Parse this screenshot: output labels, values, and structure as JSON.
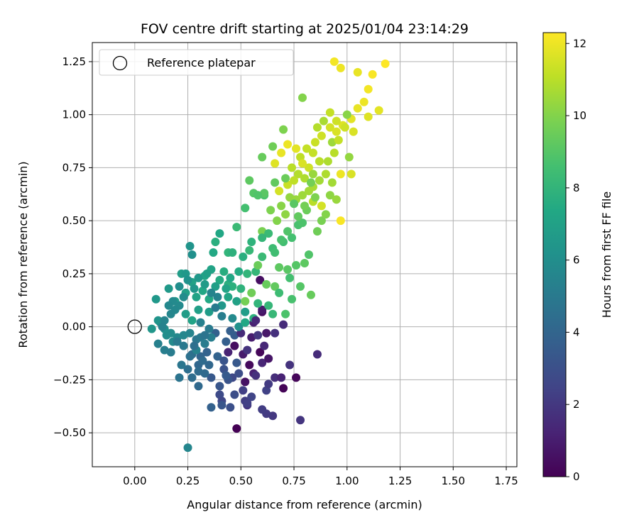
{
  "chart_data": {
    "type": "scatter",
    "title": "FOV centre drift starting at 2025/01/04 23:14:29",
    "xlabel": "Angular distance from reference (arcmin)",
    "ylabel": "Rotation from reference (arcmin)",
    "xlim": [
      -0.2,
      1.8
    ],
    "ylim": [
      -0.66,
      1.34
    ],
    "x_ticks": [
      0.0,
      0.25,
      0.5,
      0.75,
      1.0,
      1.25,
      1.5,
      1.75
    ],
    "x_tick_labels": [
      "0.00",
      "0.25",
      "0.50",
      "0.75",
      "1.00",
      "1.25",
      "1.50",
      "1.75"
    ],
    "y_ticks": [
      -0.5,
      -0.25,
      0.0,
      0.25,
      0.5,
      0.75,
      1.0,
      1.25
    ],
    "y_tick_labels": [
      "−0.50",
      "−0.25",
      "0.00",
      "0.25",
      "0.50",
      "0.75",
      "1.00",
      "1.25"
    ],
    "grid": true,
    "legend": {
      "placement": "top-left",
      "entries": [
        "Reference platepar"
      ]
    },
    "reference_point": {
      "x": 0.0,
      "y": 0.0
    },
    "colorbar": {
      "label": "Hours from first FF file",
      "colormap": "viridis",
      "range": [
        0,
        12.3
      ],
      "ticks": [
        0,
        2,
        4,
        6,
        8,
        10,
        12
      ],
      "tick_labels": [
        "0",
        "2",
        "4",
        "6",
        "8",
        "10",
        "12"
      ]
    },
    "points": [
      [
        0.48,
        -0.48,
        0.0
      ],
      [
        0.7,
        -0.29,
        0.1
      ],
      [
        0.76,
        -0.24,
        0.2
      ],
      [
        0.54,
        -0.18,
        0.3
      ],
      [
        0.59,
        -0.12,
        0.2
      ],
      [
        0.47,
        -0.09,
        0.4
      ],
      [
        0.6,
        0.07,
        0.5
      ],
      [
        0.59,
        0.22,
        0.5
      ],
      [
        0.7,
        0.01,
        1.5
      ],
      [
        0.62,
        -0.03,
        0.8
      ],
      [
        0.55,
        -0.05,
        1.0
      ],
      [
        0.51,
        -0.13,
        0.9
      ],
      [
        0.44,
        -0.12,
        1.2
      ],
      [
        0.52,
        -0.26,
        0.6
      ],
      [
        0.56,
        -0.22,
        1.1
      ],
      [
        0.6,
        -0.17,
        1.3
      ],
      [
        0.66,
        -0.24,
        1.6
      ],
      [
        0.73,
        -0.18,
        1.8
      ],
      [
        0.61,
        -0.09,
        1.4
      ],
      [
        0.66,
        -0.03,
        1.7
      ],
      [
        0.86,
        -0.13,
        1.5
      ],
      [
        0.78,
        -0.44,
        1.9
      ],
      [
        0.65,
        -0.42,
        2.0
      ],
      [
        0.62,
        -0.41,
        2.1
      ],
      [
        0.53,
        -0.37,
        1.9
      ],
      [
        0.52,
        -0.35,
        2.2
      ],
      [
        0.51,
        -0.3,
        2.3
      ],
      [
        0.55,
        -0.33,
        2.5
      ],
      [
        0.62,
        -0.3,
        2.4
      ],
      [
        0.63,
        -0.27,
        2.1
      ],
      [
        0.6,
        -0.39,
        2.2
      ],
      [
        0.45,
        -0.38,
        3.0
      ],
      [
        0.4,
        -0.32,
        2.8
      ],
      [
        0.41,
        -0.35,
        2.6
      ],
      [
        0.46,
        -0.24,
        2.7
      ],
      [
        0.49,
        -0.22,
        2.9
      ],
      [
        0.42,
        -0.2,
        3.1
      ],
      [
        0.44,
        -0.25,
        3.2
      ],
      [
        0.4,
        -0.28,
        3.3
      ],
      [
        0.36,
        -0.24,
        3.4
      ],
      [
        0.43,
        -0.23,
        3.5
      ],
      [
        0.47,
        -0.04,
        3.6
      ],
      [
        0.45,
        -0.02,
        3.7
      ],
      [
        0.38,
        -0.03,
        3.8
      ],
      [
        0.34,
        -0.12,
        3.9
      ],
      [
        0.31,
        -0.14,
        4.0
      ],
      [
        0.3,
        -0.18,
        4.1
      ],
      [
        0.33,
        -0.22,
        4.2
      ],
      [
        0.3,
        -0.21,
        4.3
      ],
      [
        0.27,
        -0.13,
        4.4
      ],
      [
        0.25,
        -0.2,
        4.5
      ],
      [
        0.26,
        -0.14,
        4.6
      ],
      [
        0.21,
        -0.24,
        4.7
      ],
      [
        0.29,
        -0.06,
        4.8
      ],
      [
        0.31,
        -0.05,
        4.9
      ],
      [
        0.35,
        -0.01,
        5.0
      ],
      [
        0.33,
        -0.08,
        5.1
      ],
      [
        0.36,
        -0.05,
        5.2
      ],
      [
        0.31,
        0.02,
        5.3
      ],
      [
        0.29,
        -0.11,
        5.4
      ],
      [
        0.26,
        -0.03,
        5.5
      ],
      [
        0.23,
        -0.04,
        5.6
      ],
      [
        0.2,
        -0.05,
        5.7
      ],
      [
        0.18,
        -0.07,
        5.8
      ],
      [
        0.17,
        -0.03,
        5.9
      ],
      [
        0.15,
        -0.04,
        6.0
      ],
      [
        0.14,
        -0.01,
        6.1
      ],
      [
        0.12,
        0.02,
        6.2
      ],
      [
        0.11,
        0.03,
        6.3
      ],
      [
        0.08,
        -0.01,
        6.4
      ],
      [
        0.1,
        0.13,
        6.5
      ],
      [
        0.16,
        0.18,
        6.6
      ],
      [
        0.19,
        0.12,
        6.7
      ],
      [
        0.22,
        0.25,
        6.8
      ],
      [
        0.24,
        0.16,
        6.9
      ],
      [
        0.27,
        0.21,
        7.0
      ],
      [
        0.29,
        0.14,
        7.1
      ],
      [
        0.33,
        0.24,
        7.2
      ],
      [
        0.32,
        0.17,
        7.3
      ],
      [
        0.35,
        0.13,
        7.4
      ],
      [
        0.4,
        0.22,
        7.5
      ],
      [
        0.42,
        0.26,
        7.6
      ],
      [
        0.44,
        0.2,
        7.7
      ],
      [
        0.46,
        0.19,
        7.8
      ],
      [
        0.5,
        0.18,
        7.9
      ],
      [
        0.53,
        0.25,
        8.0
      ],
      [
        0.57,
        0.26,
        8.1
      ],
      [
        0.54,
        0.36,
        8.2
      ],
      [
        0.6,
        0.33,
        8.3
      ],
      [
        0.65,
        0.37,
        8.4
      ],
      [
        0.7,
        0.4,
        8.5
      ],
      [
        0.74,
        0.42,
        8.6
      ],
      [
        0.77,
        0.48,
        8.7
      ],
      [
        0.79,
        0.49,
        8.8
      ],
      [
        0.82,
        0.34,
        8.9
      ],
      [
        0.76,
        0.29,
        9.0
      ],
      [
        0.72,
        0.27,
        9.1
      ],
      [
        0.68,
        0.28,
        9.2
      ],
      [
        0.66,
        0.19,
        9.3
      ],
      [
        0.62,
        0.2,
        9.4
      ],
      [
        0.58,
        0.29,
        9.5
      ],
      [
        0.55,
        0.16,
        9.6
      ],
      [
        0.52,
        0.12,
        9.7
      ],
      [
        0.6,
        0.45,
        9.8
      ],
      [
        0.64,
        0.55,
        9.9
      ],
      [
        0.67,
        0.5,
        10.0
      ],
      [
        0.69,
        0.57,
        10.1
      ],
      [
        0.71,
        0.53,
        10.2
      ],
      [
        0.73,
        0.61,
        10.3
      ],
      [
        0.76,
        0.6,
        10.4
      ],
      [
        0.79,
        0.62,
        10.5
      ],
      [
        0.82,
        0.64,
        10.6
      ],
      [
        0.84,
        0.66,
        10.7
      ],
      [
        0.8,
        0.7,
        10.8
      ],
      [
        0.77,
        0.72,
        10.9
      ],
      [
        0.74,
        0.75,
        11.0
      ],
      [
        0.78,
        0.8,
        11.1
      ],
      [
        0.81,
        0.84,
        11.2
      ],
      [
        0.85,
        0.87,
        11.3
      ],
      [
        0.88,
        0.9,
        11.4
      ],
      [
        0.92,
        0.94,
        11.5
      ],
      [
        0.95,
        0.92,
        11.6
      ],
      [
        0.98,
        0.95,
        11.7
      ],
      [
        1.02,
        0.98,
        11.8
      ],
      [
        1.05,
        1.03,
        11.9
      ],
      [
        1.08,
        1.06,
        12.0
      ],
      [
        1.1,
        1.12,
        12.1
      ],
      [
        1.12,
        1.19,
        12.2
      ],
      [
        1.18,
        1.24,
        12.3
      ],
      [
        0.94,
        1.25,
        12.1
      ],
      [
        0.97,
        1.22,
        12.0
      ],
      [
        1.05,
        1.2,
        11.9
      ],
      [
        1.15,
        1.02,
        11.8
      ],
      [
        1.1,
        0.99,
        11.7
      ],
      [
        0.97,
        0.72,
        12.0
      ],
      [
        1.02,
        0.72,
        11.6
      ],
      [
        0.97,
        0.5,
        12.2
      ],
      [
        0.88,
        0.57,
        11.5
      ],
      [
        0.84,
        0.59,
        11.0
      ],
      [
        0.79,
        1.08,
        10.0
      ],
      [
        0.7,
        0.93,
        9.9
      ],
      [
        0.65,
        0.85,
        9.6
      ],
      [
        0.6,
        0.8,
        9.4
      ],
      [
        0.54,
        0.69,
        9.2
      ],
      [
        0.56,
        0.63,
        9.0
      ],
      [
        0.61,
        0.62,
        8.8
      ],
      [
        0.52,
        0.56,
        8.6
      ],
      [
        0.48,
        0.47,
        8.3
      ],
      [
        0.44,
        0.35,
        8.0
      ],
      [
        0.46,
        0.35,
        7.8
      ],
      [
        0.38,
        0.4,
        7.7
      ],
      [
        0.37,
        0.35,
        7.4
      ],
      [
        0.4,
        0.44,
        7.3
      ],
      [
        0.36,
        0.27,
        7.1
      ],
      [
        0.34,
        0.25,
        6.9
      ],
      [
        0.24,
        0.25,
        6.5
      ],
      [
        0.26,
        0.38,
        6.3
      ],
      [
        0.27,
        0.34,
        6.1
      ],
      [
        0.23,
        0.14,
        5.9
      ],
      [
        0.21,
        0.1,
        5.8
      ],
      [
        0.19,
        0.08,
        5.7
      ],
      [
        0.17,
        0.06,
        5.6
      ],
      [
        0.14,
        0.03,
        5.5
      ],
      [
        0.13,
        0.0,
        5.4
      ],
      [
        0.11,
        -0.08,
        5.3
      ],
      [
        0.14,
        -0.11,
        5.2
      ],
      [
        0.17,
        -0.12,
        5.1
      ],
      [
        0.2,
        -0.07,
        5.0
      ],
      [
        0.23,
        -0.09,
        4.9
      ],
      [
        0.25,
        -0.57,
        5.6
      ],
      [
        0.22,
        -0.18,
        4.8
      ],
      [
        0.27,
        -0.24,
        4.4
      ],
      [
        0.3,
        -0.28,
        4.2
      ],
      [
        0.36,
        -0.38,
        3.8
      ],
      [
        0.41,
        -0.37,
        3.3
      ],
      [
        0.47,
        -0.32,
        2.9
      ],
      [
        0.53,
        -0.36,
        2.3
      ],
      [
        0.57,
        -0.23,
        1.7
      ],
      [
        0.69,
        -0.24,
        1.2
      ],
      [
        0.63,
        -0.15,
        0.7
      ],
      [
        0.6,
        0.08,
        0.9
      ],
      [
        0.56,
        0.02,
        1.1
      ],
      [
        0.5,
        -0.03,
        1.5
      ],
      [
        0.46,
        0.04,
        5.8
      ],
      [
        0.49,
        0.0,
        6.2
      ],
      [
        0.41,
        0.1,
        6.5
      ],
      [
        0.35,
        0.07,
        6.7
      ],
      [
        0.3,
        0.08,
        6.9
      ],
      [
        0.27,
        0.03,
        7.1
      ],
      [
        0.24,
        0.06,
        6.8
      ],
      [
        0.52,
        0.02,
        7.4
      ],
      [
        0.56,
        0.04,
        7.8
      ],
      [
        0.58,
        0.11,
        8.0
      ],
      [
        0.63,
        0.1,
        8.1
      ],
      [
        0.65,
        0.06,
        8.2
      ],
      [
        0.68,
        0.16,
        8.4
      ],
      [
        0.73,
        0.23,
        8.6
      ],
      [
        0.74,
        0.13,
        8.7
      ],
      [
        0.71,
        0.06,
        8.8
      ],
      [
        0.78,
        0.19,
        9.0
      ],
      [
        0.8,
        0.3,
        9.2
      ],
      [
        0.83,
        0.15,
        9.4
      ],
      [
        0.86,
        0.45,
        9.6
      ],
      [
        0.88,
        0.5,
        9.8
      ],
      [
        0.9,
        0.53,
        10.0
      ],
      [
        0.92,
        0.62,
        10.2
      ],
      [
        0.95,
        0.6,
        10.4
      ],
      [
        0.93,
        0.68,
        10.6
      ],
      [
        0.9,
        0.72,
        10.8
      ],
      [
        0.87,
        0.78,
        11.0
      ],
      [
        0.84,
        0.82,
        11.2
      ],
      [
        0.82,
        0.75,
        11.4
      ],
      [
        0.79,
        0.77,
        11.6
      ],
      [
        0.76,
        0.84,
        11.8
      ],
      [
        0.72,
        0.86,
        12.0
      ],
      [
        0.69,
        0.82,
        11.9
      ],
      [
        0.66,
        0.77,
        11.7
      ],
      [
        0.68,
        0.64,
        11.5
      ],
      [
        0.72,
        0.67,
        11.3
      ],
      [
        0.75,
        0.69,
        11.1
      ],
      [
        0.86,
        0.94,
        10.9
      ],
      [
        0.89,
        0.97,
        10.7
      ],
      [
        0.93,
        0.87,
        10.5
      ],
      [
        1.01,
        0.8,
        10.3
      ],
      [
        1.0,
        1.0,
        10.1
      ],
      [
        0.85,
        0.61,
        9.9
      ],
      [
        0.83,
        0.68,
        9.7
      ],
      [
        0.81,
        0.55,
        9.5
      ],
      [
        0.77,
        0.52,
        9.3
      ],
      [
        0.75,
        0.58,
        9.1
      ],
      [
        0.72,
        0.45,
        8.9
      ],
      [
        0.69,
        0.41,
        8.7
      ],
      [
        0.66,
        0.35,
        8.5
      ],
      [
        0.63,
        0.44,
        8.3
      ],
      [
        0.6,
        0.42,
        8.1
      ],
      [
        0.55,
        0.4,
        7.9
      ],
      [
        0.51,
        0.33,
        7.7
      ],
      [
        0.49,
        0.26,
        7.5
      ],
      [
        0.45,
        0.23,
        7.3
      ],
      [
        0.43,
        0.18,
        7.1
      ],
      [
        0.38,
        0.19,
        6.9
      ],
      [
        0.33,
        0.2,
        6.7
      ],
      [
        0.3,
        0.23,
        6.5
      ],
      [
        0.28,
        0.18,
        6.4
      ],
      [
        0.25,
        0.22,
        6.2
      ],
      [
        0.21,
        0.19,
        6.0
      ],
      [
        0.18,
        0.12,
        5.8
      ],
      [
        0.16,
        0.1,
        5.7
      ],
      [
        0.36,
        0.16,
        5.5
      ],
      [
        0.39,
        0.14,
        5.4
      ],
      [
        0.41,
        0.05,
        5.2
      ],
      [
        0.38,
        0.09,
        5.0
      ],
      [
        0.33,
        -0.04,
        4.7
      ],
      [
        0.28,
        -0.09,
        4.5
      ],
      [
        0.32,
        -0.16,
        4.3
      ],
      [
        0.35,
        -0.18,
        4.1
      ],
      [
        0.39,
        -0.14,
        3.9
      ],
      [
        0.43,
        -0.07,
        3.7
      ],
      [
        0.48,
        -0.17,
        3.4
      ],
      [
        0.42,
        -0.16,
        3.2
      ],
      [
        0.58,
        -0.04,
        2.0
      ],
      [
        0.53,
        -0.11,
        1.8
      ],
      [
        0.57,
        0.03,
        1.4
      ],
      [
        0.52,
        0.07,
        6.8
      ],
      [
        0.48,
        0.12,
        7.0
      ],
      [
        0.44,
        0.14,
        7.2
      ],
      [
        0.61,
        0.63,
        9.1
      ],
      [
        0.58,
        0.62,
        8.9
      ],
      [
        0.66,
        0.68,
        9.3
      ],
      [
        0.71,
        0.7,
        9.5
      ],
      [
        0.8,
        0.57,
        9.7
      ],
      [
        0.84,
        0.72,
        10.4
      ],
      [
        0.87,
        0.69,
        10.6
      ],
      [
        0.91,
        0.78,
        10.8
      ],
      [
        0.94,
        0.82,
        11.0
      ],
      [
        0.96,
        0.88,
        11.2
      ],
      [
        0.99,
        0.94,
        11.4
      ],
      [
        1.03,
        0.92,
        11.6
      ],
      [
        0.92,
        1.01,
        11.2
      ],
      [
        0.95,
        0.97,
        11.4
      ]
    ]
  }
}
